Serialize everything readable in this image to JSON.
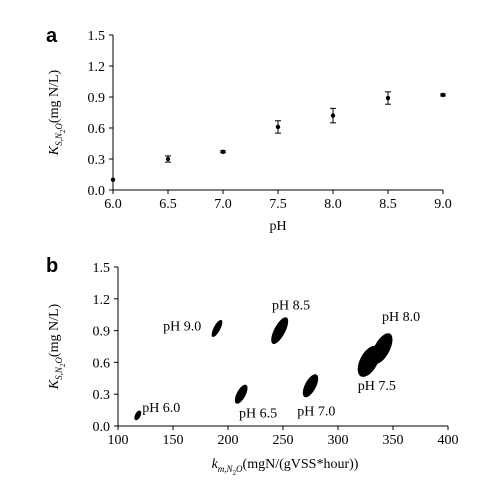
{
  "chart_data": [
    {
      "panel": "a",
      "type": "scatter",
      "xlabel": "pH",
      "ylabel": {
        "main": "K",
        "sub": "S,N",
        "sub2": "2",
        "sub3": "O",
        "units": "(mg N/L)"
      },
      "xlim": [
        6.0,
        9.0
      ],
      "ylim": [
        0.0,
        1.5
      ],
      "xticks": [
        "6.0",
        "6.5",
        "7.0",
        "7.5",
        "8.0",
        "8.5",
        "9.0"
      ],
      "yticks": [
        "0.0",
        "0.3",
        "0.6",
        "0.9",
        "1.2",
        "1.5"
      ],
      "grid": false,
      "points": [
        {
          "x": 6.0,
          "y": 0.1,
          "err": 0.0
        },
        {
          "x": 6.5,
          "y": 0.3,
          "err": 0.03
        },
        {
          "x": 7.0,
          "y": 0.37,
          "err": 0.01
        },
        {
          "x": 7.5,
          "y": 0.61,
          "err": 0.06
        },
        {
          "x": 8.0,
          "y": 0.72,
          "err": 0.07
        },
        {
          "x": 8.5,
          "y": 0.89,
          "err": 0.06
        },
        {
          "x": 9.0,
          "y": 0.92,
          "err": 0.01
        }
      ]
    },
    {
      "panel": "b",
      "type": "scatter",
      "xlabel": {
        "main": "k",
        "sub": "m,N",
        "sub2": "2",
        "sub3": "O",
        "units": "(mgN/(gVSS*hour))"
      },
      "ylabel": {
        "main": "K",
        "sub": "S,N",
        "sub2": "2",
        "sub3": "O",
        "units": "(mg N/L)"
      },
      "xlim": [
        100,
        400
      ],
      "ylim": [
        0.0,
        1.5
      ],
      "xticks": [
        "100",
        "150",
        "200",
        "250",
        "300",
        "350",
        "400"
      ],
      "yticks": [
        "0.0",
        "0.3",
        "0.6",
        "0.9",
        "1.2",
        "1.5"
      ],
      "grid": false,
      "regions": [
        {
          "label": "pH 6.0",
          "cx": 118,
          "cy": 0.1,
          "rx": 2.5,
          "ry": 0.05,
          "labelPos": {
            "x": 122,
            "y": 0.13
          }
        },
        {
          "label": "pH 6.5",
          "cx": 212,
          "cy": 0.3,
          "rx": 4,
          "ry": 0.1,
          "labelPos": {
            "x": 210,
            "y": 0.08
          }
        },
        {
          "label": "pH 7.0",
          "cx": 275,
          "cy": 0.38,
          "rx": 5,
          "ry": 0.12,
          "labelPos": {
            "x": 263,
            "y": 0.1
          }
        },
        {
          "label": "pH 7.5",
          "cx": 328,
          "cy": 0.61,
          "rx": 8,
          "ry": 0.16,
          "labelPos": {
            "x": 318,
            "y": 0.34
          }
        },
        {
          "label": "pH 8.0",
          "cx": 340,
          "cy": 0.73,
          "rx": 7,
          "ry": 0.16,
          "labelPos": {
            "x": 340,
            "y": 0.99
          }
        },
        {
          "label": "pH 8.5",
          "cx": 247,
          "cy": 0.9,
          "rx": 5,
          "ry": 0.14,
          "labelPos": {
            "x": 240,
            "y": 1.1
          }
        },
        {
          "label": "pH 9.0",
          "cx": 190,
          "cy": 0.92,
          "rx": 3,
          "ry": 0.09,
          "labelPos": {
            "x": 141,
            "y": 0.9
          }
        }
      ]
    }
  ],
  "panels": {
    "a_letter": "a",
    "b_letter": "b"
  }
}
